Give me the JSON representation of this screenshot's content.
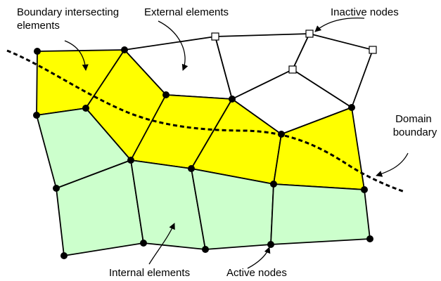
{
  "labels": {
    "boundary_intersecting": [
      "Boundary intersecting",
      "elements"
    ],
    "external": "External elements",
    "inactive": "Inactive nodes",
    "domain_boundary": [
      "Domain",
      "boundary"
    ],
    "internal": "Internal elements",
    "active": "Active nodes"
  }
}
